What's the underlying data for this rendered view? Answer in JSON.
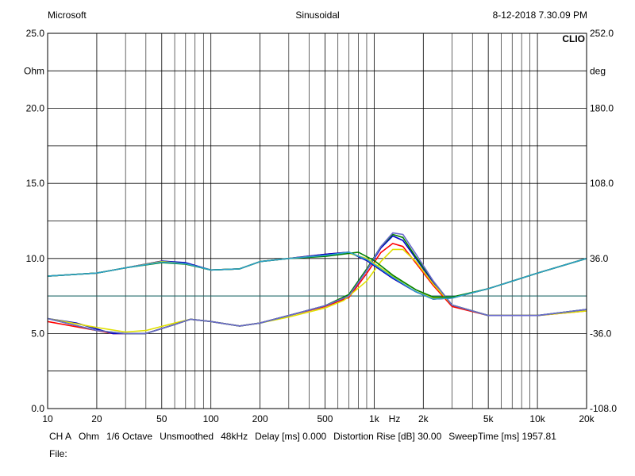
{
  "header": {
    "left": "Microsoft",
    "center": "Sinusoidal",
    "right": "8-12-2018 7.30.09 PM"
  },
  "footer": {
    "items": [
      "CH A",
      "Ohm",
      "1/6 Octave",
      "Unsmoothed",
      "48kHz",
      "Delay [ms] 0.000",
      "Distortion Rise [dB] 30.00",
      "SweepTime [ms] 1957.81"
    ],
    "file_label": "File:"
  },
  "chart_data": {
    "type": "line",
    "logo": "CLIO",
    "x_scale": "log",
    "xlim": [
      10,
      20000
    ],
    "xlabel": "Hz",
    "x_ticks": [
      {
        "v": 10,
        "label": "10"
      },
      {
        "v": 20,
        "label": "20"
      },
      {
        "v": 50,
        "label": "50"
      },
      {
        "v": 100,
        "label": "100"
      },
      {
        "v": 200,
        "label": "200"
      },
      {
        "v": 500,
        "label": "500"
      },
      {
        "v": 1000,
        "label": "1k"
      },
      {
        "v": 2000,
        "label": "2k"
      },
      {
        "v": 5000,
        "label": "5k"
      },
      {
        "v": 10000,
        "label": "10k"
      },
      {
        "v": 20000,
        "label": "20k"
      }
    ],
    "x_minor_grid": [
      30,
      40,
      60,
      70,
      80,
      90,
      300,
      400,
      600,
      700,
      800,
      900,
      3000,
      4000,
      6000,
      7000,
      8000,
      9000
    ],
    "y_left": {
      "unit": "Ohm",
      "lim": [
        0,
        25
      ],
      "ticks": [
        {
          "v": 0,
          "label": "0.0"
        },
        {
          "v": 5,
          "label": "5.0"
        },
        {
          "v": 10,
          "label": "10.0"
        },
        {
          "v": 15,
          "label": "15.0"
        },
        {
          "v": 20,
          "label": "20.0"
        },
        {
          "v": 25,
          "label": "25.0"
        }
      ],
      "grid": [
        2.5,
        5,
        7.5,
        10,
        12.5,
        15,
        17.5,
        20,
        22.5
      ]
    },
    "y_right": {
      "unit": "deg",
      "lim": [
        -108,
        252
      ],
      "ticks": [
        {
          "v": -108,
          "label": "-108.0"
        },
        {
          "v": -36,
          "label": "-36.0"
        },
        {
          "v": 36,
          "label": "36.0"
        },
        {
          "v": 108,
          "label": "108.0"
        },
        {
          "v": 180,
          "label": "180.0"
        },
        {
          "v": 252,
          "label": "252.0"
        }
      ]
    },
    "reference_line": {
      "axis": "left",
      "y": 7.5
    },
    "grid": true,
    "series": [
      {
        "color": "#ff0000",
        "axis": "left",
        "points": [
          [
            10,
            5.8
          ],
          [
            20,
            5.2
          ],
          [
            25,
            5.0
          ],
          [
            40,
            5.0
          ],
          [
            60,
            5.6
          ],
          [
            75,
            5.95
          ],
          [
            100,
            5.8
          ],
          [
            150,
            5.5
          ],
          [
            200,
            5.7
          ],
          [
            300,
            6.2
          ],
          [
            500,
            6.8
          ],
          [
            700,
            7.4
          ],
          [
            900,
            9.0
          ],
          [
            1100,
            10.4
          ],
          [
            1300,
            11.0
          ],
          [
            1500,
            10.8
          ],
          [
            1800,
            9.7
          ],
          [
            2300,
            8.2
          ],
          [
            3000,
            6.8
          ],
          [
            5000,
            6.2
          ],
          [
            10000,
            6.2
          ],
          [
            20000,
            6.5
          ]
        ]
      },
      {
        "color": "#0000cc",
        "axis": "left",
        "points": [
          [
            10,
            6.0
          ],
          [
            15,
            5.7
          ],
          [
            20,
            5.3
          ],
          [
            25,
            5.0
          ],
          [
            40,
            5.0
          ],
          [
            60,
            5.6
          ],
          [
            75,
            5.95
          ],
          [
            100,
            5.8
          ],
          [
            150,
            5.5
          ],
          [
            200,
            5.7
          ],
          [
            300,
            6.2
          ],
          [
            500,
            6.85
          ],
          [
            700,
            7.5
          ],
          [
            900,
            9.2
          ],
          [
            1100,
            10.7
          ],
          [
            1300,
            11.5
          ],
          [
            1500,
            11.2
          ],
          [
            1800,
            10.0
          ],
          [
            2300,
            8.4
          ],
          [
            3000,
            6.9
          ],
          [
            5000,
            6.2
          ],
          [
            10000,
            6.2
          ],
          [
            20000,
            6.6
          ]
        ]
      },
      {
        "color": "#e0e000",
        "axis": "left",
        "points": [
          [
            10,
            6.0
          ],
          [
            20,
            5.4
          ],
          [
            30,
            5.1
          ],
          [
            40,
            5.2
          ],
          [
            60,
            5.7
          ],
          [
            75,
            5.95
          ],
          [
            100,
            5.8
          ],
          [
            150,
            5.5
          ],
          [
            200,
            5.7
          ],
          [
            300,
            6.1
          ],
          [
            500,
            6.7
          ],
          [
            650,
            7.2
          ],
          [
            900,
            8.5
          ],
          [
            1100,
            9.8
          ],
          [
            1300,
            10.6
          ],
          [
            1500,
            10.6
          ],
          [
            1800,
            9.8
          ],
          [
            2300,
            8.3
          ],
          [
            3000,
            6.9
          ],
          [
            5000,
            6.2
          ],
          [
            10000,
            6.2
          ],
          [
            20000,
            6.5
          ]
        ]
      },
      {
        "color": "#008000",
        "axis": "left",
        "points": [
          [
            10,
            6.0
          ],
          [
            20,
            5.2
          ],
          [
            30,
            5.0
          ],
          [
            40,
            5.0
          ],
          [
            60,
            5.6
          ],
          [
            75,
            5.95
          ],
          [
            100,
            5.8
          ],
          [
            150,
            5.5
          ],
          [
            200,
            5.7
          ],
          [
            300,
            6.2
          ],
          [
            500,
            6.85
          ],
          [
            700,
            7.6
          ],
          [
            900,
            9.3
          ],
          [
            1100,
            10.8
          ],
          [
            1300,
            11.6
          ],
          [
            1500,
            11.4
          ],
          [
            1800,
            10.1
          ],
          [
            2300,
            8.5
          ],
          [
            3000,
            6.9
          ],
          [
            5000,
            6.2
          ],
          [
            10000,
            6.2
          ],
          [
            20000,
            6.6
          ]
        ]
      },
      {
        "color": "#6a6acc",
        "axis": "left",
        "points": [
          [
            10,
            6.0
          ],
          [
            20,
            5.2
          ],
          [
            30,
            5.0
          ],
          [
            40,
            5.0
          ],
          [
            60,
            5.6
          ],
          [
            75,
            5.95
          ],
          [
            100,
            5.8
          ],
          [
            150,
            5.5
          ],
          [
            200,
            5.7
          ],
          [
            300,
            6.2
          ],
          [
            500,
            6.85
          ],
          [
            700,
            7.5
          ],
          [
            900,
            9.2
          ],
          [
            1100,
            10.8
          ],
          [
            1300,
            11.7
          ],
          [
            1500,
            11.6
          ],
          [
            1800,
            10.3
          ],
          [
            2300,
            8.5
          ],
          [
            3000,
            6.9
          ],
          [
            5000,
            6.2
          ],
          [
            10000,
            6.2
          ],
          [
            20000,
            6.6
          ]
        ]
      },
      {
        "color": "#ff0000",
        "axis": "right",
        "points": [
          [
            10,
            19
          ],
          [
            20,
            22
          ],
          [
            30,
            27
          ],
          [
            50,
            33.5
          ],
          [
            70,
            31
          ],
          [
            100,
            25
          ],
          [
            150,
            26
          ],
          [
            200,
            33
          ],
          [
            300,
            36
          ],
          [
            500,
            40
          ],
          [
            700,
            42
          ],
          [
            900,
            34
          ],
          [
            1300,
            17
          ],
          [
            1800,
            4
          ],
          [
            2300,
            -3
          ],
          [
            3000,
            -2
          ],
          [
            5000,
            7
          ],
          [
            10000,
            22
          ],
          [
            20000,
            36
          ]
        ]
      },
      {
        "color": "#0000cc",
        "axis": "right",
        "points": [
          [
            10,
            19
          ],
          [
            20,
            22
          ],
          [
            30,
            27
          ],
          [
            50,
            33.5
          ],
          [
            70,
            32
          ],
          [
            100,
            25
          ],
          [
            150,
            26
          ],
          [
            200,
            33
          ],
          [
            300,
            36
          ],
          [
            500,
            40
          ],
          [
            700,
            42
          ],
          [
            900,
            34
          ],
          [
            1300,
            17
          ],
          [
            1800,
            4
          ],
          [
            2300,
            -3
          ],
          [
            3000,
            -2
          ],
          [
            5000,
            7
          ],
          [
            10000,
            22
          ],
          [
            20000,
            36
          ]
        ]
      },
      {
        "color": "#e0e000",
        "axis": "right",
        "points": [
          [
            10,
            19
          ],
          [
            20,
            22
          ],
          [
            30,
            27
          ],
          [
            50,
            33
          ],
          [
            70,
            31
          ],
          [
            100,
            25
          ],
          [
            150,
            26
          ],
          [
            200,
            33
          ],
          [
            300,
            36
          ],
          [
            500,
            39
          ],
          [
            700,
            41
          ],
          [
            900,
            36
          ],
          [
            1300,
            19
          ],
          [
            1800,
            6
          ],
          [
            2300,
            -2
          ],
          [
            3000,
            -2
          ],
          [
            5000,
            7
          ],
          [
            10000,
            22
          ],
          [
            20000,
            36
          ]
        ]
      },
      {
        "color": "#008000",
        "axis": "right",
        "points": [
          [
            10,
            19
          ],
          [
            20,
            22
          ],
          [
            30,
            27
          ],
          [
            50,
            32
          ],
          [
            70,
            30.5
          ],
          [
            100,
            25
          ],
          [
            150,
            26
          ],
          [
            200,
            33
          ],
          [
            300,
            36
          ],
          [
            500,
            38
          ],
          [
            800,
            42
          ],
          [
            1000,
            34
          ],
          [
            1300,
            20
          ],
          [
            1800,
            6
          ],
          [
            2300,
            -1
          ],
          [
            3000,
            -1
          ],
          [
            5000,
            7
          ],
          [
            10000,
            22
          ],
          [
            20000,
            36
          ]
        ]
      },
      {
        "color": "#2aa0c8",
        "axis": "right",
        "points": [
          [
            10,
            19
          ],
          [
            20,
            22
          ],
          [
            30,
            27
          ],
          [
            50,
            32.5
          ],
          [
            70,
            31
          ],
          [
            100,
            25
          ],
          [
            150,
            26
          ],
          [
            200,
            33
          ],
          [
            300,
            36
          ],
          [
            500,
            39
          ],
          [
            700,
            42
          ],
          [
            900,
            35
          ],
          [
            1300,
            18
          ],
          [
            1800,
            4
          ],
          [
            2300,
            -3
          ],
          [
            3000,
            -2
          ],
          [
            5000,
            7
          ],
          [
            10000,
            22
          ],
          [
            20000,
            36
          ]
        ]
      }
    ]
  }
}
